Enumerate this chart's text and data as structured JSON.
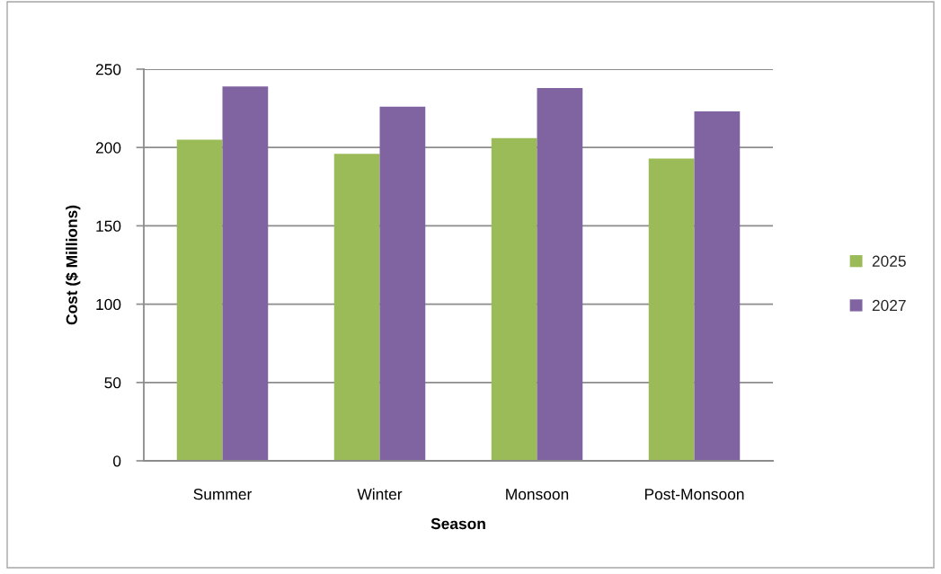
{
  "chart_data": {
    "type": "bar",
    "xlabel": "Season",
    "ylabel": "Cost ($ Millions)",
    "categories": [
      "Summer",
      "Winter",
      "Monsoon",
      "Post-Monsoon"
    ],
    "series": [
      {
        "name": "2025",
        "color": "#9bbb59",
        "values": [
          205,
          196,
          206,
          193
        ]
      },
      {
        "name": "2027",
        "color": "#8064a2",
        "values": [
          239,
          226,
          238,
          223
        ]
      }
    ],
    "ylim": [
      0,
      250
    ],
    "yticks": [
      0,
      50,
      100,
      150,
      200,
      250
    ],
    "grid": "y",
    "legend": "right"
  }
}
